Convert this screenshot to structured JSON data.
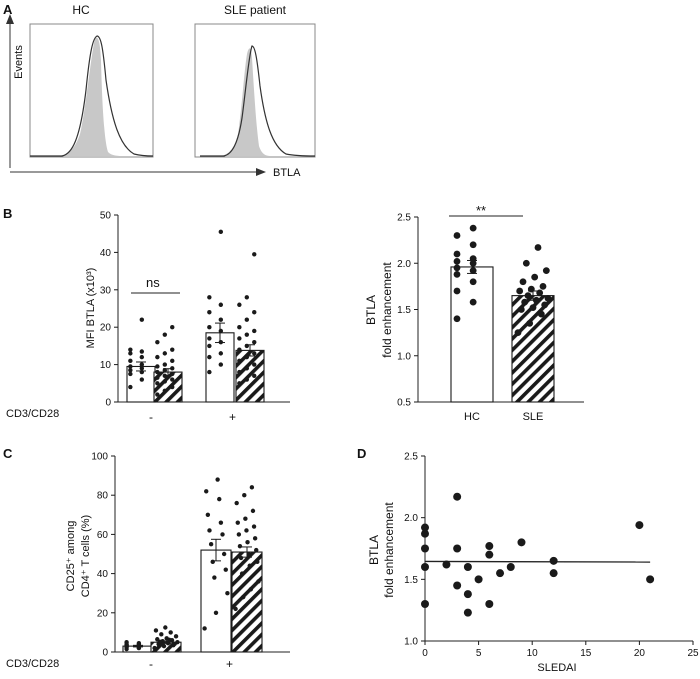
{
  "colors": {
    "ink": "#1a1a1a",
    "histogram_fill": "#c8c8c8",
    "bar_fill": "#ffffff"
  },
  "chart_data": [
    {
      "panel": "A",
      "type": "histogram",
      "panels": [
        "HC",
        "SLE patient"
      ],
      "ylabel": "Events",
      "xlabel": "BTLA"
    },
    {
      "panel": "B",
      "type": "bar",
      "ylabel": "MFI BTLA (x10³)",
      "ylim": [
        0,
        50
      ],
      "yticks": [
        0,
        10,
        20,
        30,
        40,
        50
      ],
      "treatment_label": "CD3/CD28",
      "groups": [
        "-",
        "+"
      ],
      "series": [
        {
          "pattern": "open",
          "values": [
            9.5,
            18.5
          ],
          "sem": [
            1.2,
            2.6
          ],
          "points": [
            [
              4.0,
              6.0,
              7.5,
              8.0,
              8.5,
              9.0,
              9.5,
              10.0,
              11.0,
              12.0,
              13.0,
              13.5,
              14.0,
              22.0
            ],
            [
              8.0,
              10.0,
              12.0,
              13.0,
              15.0,
              16.0,
              17.0,
              19.0,
              20.0,
              22.0,
              24.0,
              26.0,
              28.0,
              45.5
            ]
          ]
        },
        {
          "pattern": "hatched",
          "values": [
            8.0,
            13.8
          ],
          "sem": [
            0.9,
            1.5
          ],
          "points": [
            [
              2.0,
              3.0,
              4.0,
              5.0,
              5.5,
              6.0,
              6.5,
              7.0,
              7.5,
              8.0,
              8.5,
              9.0,
              9.5,
              10.0,
              11.0,
              12.0,
              13.0,
              14.0,
              16.0,
              18.0,
              20.0
            ],
            [
              5.0,
              6.0,
              7.0,
              8.0,
              9.0,
              10.0,
              11.0,
              12.0,
              13.0,
              14.0,
              15.0,
              16.0,
              17.0,
              18.0,
              19.0,
              20.0,
              22.0,
              24.0,
              26.0,
              28.0,
              39.5
            ]
          ]
        }
      ],
      "annotations": [
        {
          "text": "ns",
          "between": "- group"
        }
      ]
    },
    {
      "panel": "B-right",
      "type": "bar",
      "ylabel": [
        "BTLA",
        "fold enhancement"
      ],
      "ylim": [
        0.5,
        2.5
      ],
      "yticks": [
        0.5,
        1.0,
        1.5,
        2.0,
        2.5
      ],
      "categories": [
        "HC",
        "SLE"
      ],
      "values": [
        1.96,
        1.65
      ],
      "sem": [
        0.07,
        0.05
      ],
      "points": [
        [
          1.4,
          1.58,
          1.7,
          1.8,
          1.88,
          1.92,
          1.95,
          2.0,
          2.02,
          2.05,
          2.1,
          2.2,
          2.3,
          2.38
        ],
        [
          1.25,
          1.35,
          1.45,
          1.5,
          1.52,
          1.55,
          1.58,
          1.6,
          1.62,
          1.65,
          1.68,
          1.7,
          1.72,
          1.75,
          1.8,
          1.85,
          1.92,
          2.0,
          2.17
        ]
      ],
      "annotations": [
        {
          "text": "**",
          "between": "HC vs SLE"
        }
      ]
    },
    {
      "panel": "C",
      "type": "bar",
      "ylabel": [
        "CD25⁺ among",
        "CD4⁺ T cells (%)"
      ],
      "ylim": [
        0,
        100
      ],
      "yticks": [
        0,
        20,
        40,
        60,
        80,
        100
      ],
      "treatment_label": "CD3/CD28",
      "groups": [
        "-",
        "+"
      ],
      "series": [
        {
          "pattern": "open",
          "values": [
            3.0,
            52.0
          ],
          "sem": [
            0.4,
            5.5
          ],
          "points": [
            [
              1.5,
              2.0,
              2.5,
              2.8,
              3.0,
              3.2,
              3.5,
              3.8,
              4.0,
              4.5,
              5.0,
              2.2,
              3.0,
              3.6
            ],
            [
              12.0,
              20.0,
              30.0,
              38.0,
              42.0,
              46.0,
              50.0,
              55.0,
              60.0,
              62.0,
              66.0,
              70.0,
              78.0,
              82.0,
              88.0
            ]
          ]
        },
        {
          "pattern": "hatched",
          "values": [
            5.0,
            51.0
          ],
          "sem": [
            0.6,
            2.6
          ],
          "points": [
            [
              2.0,
              3.0,
              3.5,
              4.0,
              4.5,
              5.0,
              5.5,
              6.0,
              6.5,
              7.0,
              8.0,
              9.0,
              10.0,
              11.0,
              12.5,
              4.2,
              5.2,
              6.2
            ],
            [
              22.0,
              28.0,
              32.0,
              36.0,
              40.0,
              44.0,
              46.0,
              48.0,
              50.0,
              52.0,
              54.0,
              56.0,
              58.0,
              60.0,
              62.0,
              64.0,
              66.0,
              68.0,
              72.0,
              76.0,
              80.0,
              84.0
            ]
          ]
        }
      ]
    },
    {
      "panel": "D",
      "type": "scatter",
      "xlabel": "SLEDAI",
      "ylabel": [
        "BTLA",
        "fold enhancement"
      ],
      "xlim": [
        0,
        25
      ],
      "ylim": [
        1.0,
        2.5
      ],
      "xticks": [
        0,
        5,
        10,
        15,
        20,
        25
      ],
      "yticks": [
        1.0,
        1.5,
        2.0,
        2.5
      ],
      "points": [
        [
          0,
          1.92
        ],
        [
          0,
          1.87
        ],
        [
          0,
          1.75
        ],
        [
          0,
          1.6
        ],
        [
          0,
          1.3
        ],
        [
          2,
          1.62
        ],
        [
          3,
          2.17
        ],
        [
          3,
          1.45
        ],
        [
          3,
          1.75
        ],
        [
          4,
          1.38
        ],
        [
          4,
          1.6
        ],
        [
          4,
          1.23
        ],
        [
          5,
          1.5
        ],
        [
          6,
          1.77
        ],
        [
          6,
          1.7
        ],
        [
          6,
          1.3
        ],
        [
          7,
          1.55
        ],
        [
          8,
          1.6
        ],
        [
          9,
          1.8
        ],
        [
          12,
          1.65
        ],
        [
          12,
          1.55
        ],
        [
          20,
          1.94
        ],
        [
          21,
          1.5
        ]
      ],
      "regression": {
        "x": [
          0,
          21
        ],
        "y": [
          1.645,
          1.64
        ]
      }
    }
  ]
}
